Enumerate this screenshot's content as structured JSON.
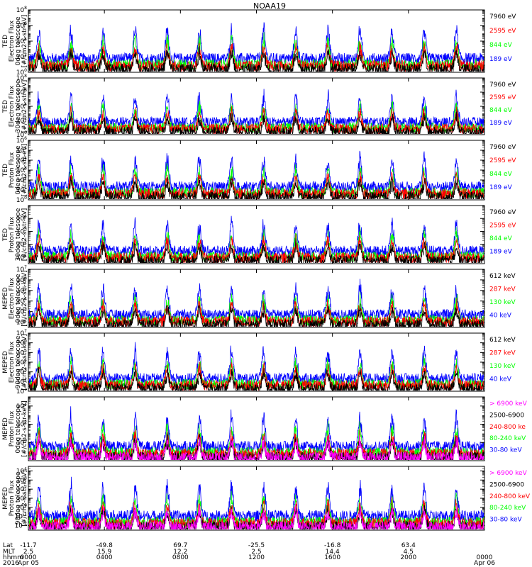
{
  "title": "NOAA19",
  "x_axis": {
    "rows": [
      {
        "label": "Lat",
        "values": [
          "-11.7",
          "-49.8",
          "69.7",
          "-25.5",
          "-16.8",
          "63.4",
          ""
        ]
      },
      {
        "label": "MLT",
        "values": [
          "2.5",
          "15.9",
          "12.2",
          "2.5",
          "14.4",
          "4.5",
          ""
        ]
      },
      {
        "label": "hhmm",
        "values": [
          "0000",
          "0400",
          "0800",
          "1200",
          "1600",
          "2000",
          "0000"
        ]
      },
      {
        "label": "2016",
        "values": [
          "Apr 05",
          "",
          "",
          "",
          "",
          "",
          "Apr 06"
        ]
      }
    ],
    "tick_hours": [
      0,
      4,
      8,
      12,
      16,
      20,
      24
    ]
  },
  "colors": {
    "black": "#000000",
    "red": "#ff0000",
    "green": "#00ff00",
    "blue": "#0000ff",
    "magenta": "#ff00ff"
  },
  "chart_data": [
    {
      "type": "line",
      "ylabel": [
        "TED",
        "Electron Flux",
        "0deg telescope",
        "[#/cm2-s-str-eV]"
      ],
      "ylog_range": [
        0,
        8
      ],
      "ytick_exponents": [
        0,
        2,
        4,
        6,
        8
      ],
      "yscale": "log",
      "series": [
        {
          "name": "7960 eV",
          "color": "black"
        },
        {
          "name": "2595 eV",
          "color": "red"
        },
        {
          "name": "844 eV",
          "color": "green"
        },
        {
          "name": "189 eV",
          "color": "blue"
        }
      ]
    },
    {
      "type": "line",
      "ylabel": [
        "TED",
        "Electron Flux",
        "30deg telescope",
        "[#/cm2-s-str-eV]"
      ],
      "ylog_range": [
        0,
        8
      ],
      "ytick_exponents": [
        0,
        2,
        4,
        6,
        8
      ],
      "yscale": "log",
      "series": [
        {
          "name": "7960 eV",
          "color": "black"
        },
        {
          "name": "2595 eV",
          "color": "red"
        },
        {
          "name": "844 eV",
          "color": "green"
        },
        {
          "name": "189 eV",
          "color": "blue"
        }
      ]
    },
    {
      "type": "line",
      "ylabel": [
        "TED",
        "Proton Flux",
        "0deg telescope",
        "[#/cm2-s-str-eV]"
      ],
      "ylog_range": [
        0,
        6
      ],
      "ytick_exponents": [
        0,
        1,
        2,
        3,
        4,
        5,
        6
      ],
      "yscale": "log",
      "series": [
        {
          "name": "7960 eV",
          "color": "black"
        },
        {
          "name": "2595 eV",
          "color": "red"
        },
        {
          "name": "844 eV",
          "color": "green"
        },
        {
          "name": "189 eV",
          "color": "blue"
        }
      ]
    },
    {
      "type": "line",
      "ylabel": [
        "TED",
        "Proton Flux",
        "30deg telescope",
        "[#/cm2-s-str-eV]"
      ],
      "ylog_range": [
        0.5,
        5
      ],
      "ytick_exponents": [
        1,
        2,
        3,
        4
      ],
      "yscale": "log",
      "series": [
        {
          "name": "7960 eV",
          "color": "black"
        },
        {
          "name": "2595 eV",
          "color": "red"
        },
        {
          "name": "844 eV",
          "color": "green"
        },
        {
          "name": "189 eV",
          "color": "blue"
        }
      ]
    },
    {
      "type": "line",
      "ylabel": [
        "MEPED",
        "Electron Flux",
        "0deg telescope",
        "[#/cm2-s-str-keV]"
      ],
      "ylog_range": [
        1.5,
        7
      ],
      "ytick_exponents": [
        2,
        3,
        4,
        5,
        6,
        7
      ],
      "yscale": "log",
      "series": [
        {
          "name": "612 keV",
          "color": "black"
        },
        {
          "name": "287 keV",
          "color": "red"
        },
        {
          "name": "130 keV",
          "color": "green"
        },
        {
          "name": "40 keV",
          "color": "blue"
        }
      ]
    },
    {
      "type": "line",
      "ylabel": [
        "MEPED",
        "Electron Flux",
        "90deg telescope",
        "[#/cm2-s-str-keV]"
      ],
      "ylog_range": [
        1,
        7
      ],
      "ytick_exponents": [
        1,
        2,
        3,
        4,
        5,
        6,
        7
      ],
      "yscale": "log",
      "series": [
        {
          "name": "612 keV",
          "color": "black"
        },
        {
          "name": "287 keV",
          "color": "red"
        },
        {
          "name": "130 keV",
          "color": "green"
        },
        {
          "name": "40 keV",
          "color": "blue"
        }
      ]
    },
    {
      "type": "line",
      "ylabel": [
        "MEPED",
        "Proton Flux",
        "0deg telescope",
        "[#/cm2-s-str-keV]"
      ],
      "ylog_range": [
        -2,
        5
      ],
      "ytick_exponents": [
        0,
        2,
        4
      ],
      "yscale": "log",
      "series": [
        {
          "name": "> 6900 keV",
          "color": "magenta"
        },
        {
          "name": "2500-6900",
          "color": "black"
        },
        {
          "name": "240-800 ke",
          "color": "red"
        },
        {
          "name": "80-240 keV",
          "color": "green"
        },
        {
          "name": "30-80 keV",
          "color": "blue"
        }
      ]
    },
    {
      "type": "line",
      "ylabel": [
        "MEPED",
        "Proton Flux",
        "90deg telescope",
        "[#/cm2-s-str-keV]"
      ],
      "ylog_range": [
        -2.5,
        4.5
      ],
      "ytick_exponents": [
        -2,
        -1,
        0,
        1,
        2,
        3,
        4
      ],
      "yscale": "log",
      "series": [
        {
          "name": "> 6900 keV",
          "color": "magenta"
        },
        {
          "name": "2500-6900",
          "color": "black"
        },
        {
          "name": "240-800 keV",
          "color": "red"
        },
        {
          "name": "80-240 keV",
          "color": "green"
        },
        {
          "name": "30-80 keV",
          "color": "blue"
        }
      ]
    }
  ]
}
